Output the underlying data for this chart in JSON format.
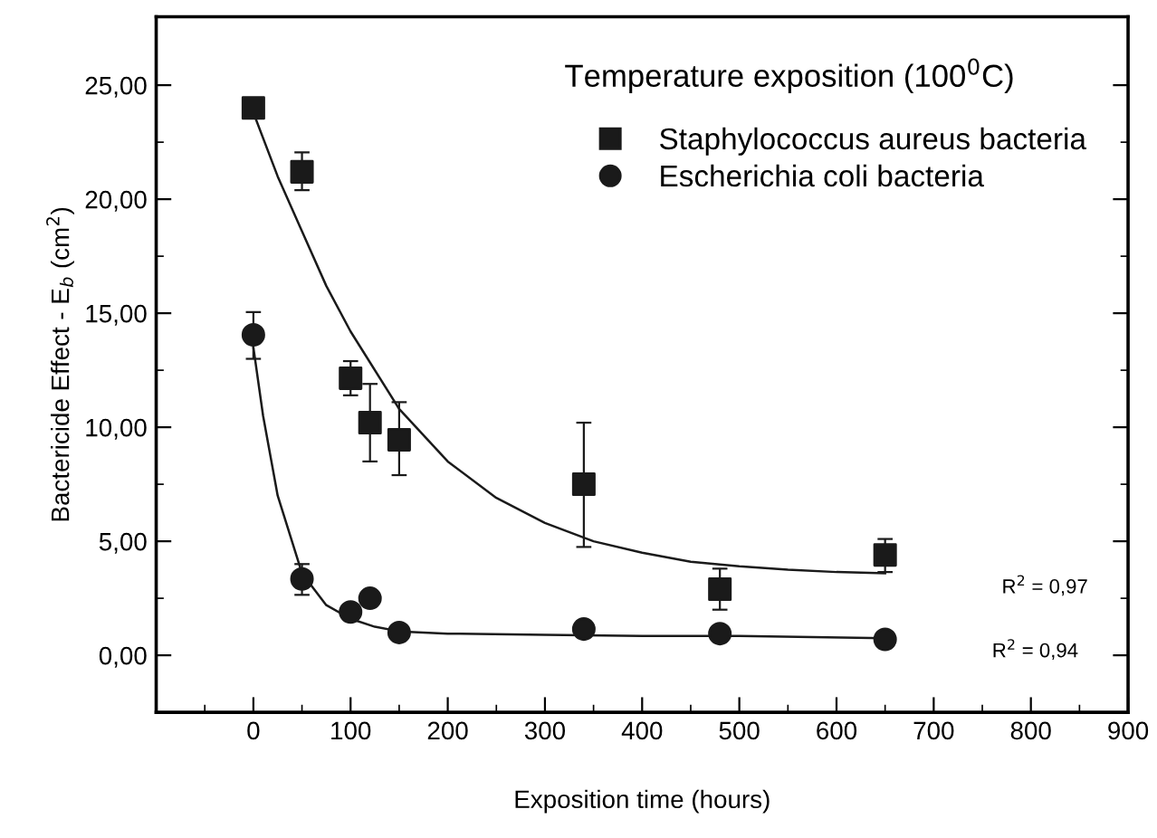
{
  "chart_data": {
    "type": "scatter",
    "xlabel": "Exposition time (hours)",
    "ylabel": "Bactericide Effect - E$_{b}$ (cm$^{2}$)",
    "xlim": [
      -100,
      900
    ],
    "xticks": [
      0,
      100,
      200,
      300,
      400,
      500,
      600,
      700,
      800,
      900
    ],
    "ylim": [
      -2.5,
      28
    ],
    "yticks": [
      {
        "value": 0,
        "label": "0,00"
      },
      {
        "value": 5,
        "label": "5,00"
      },
      {
        "value": 10,
        "label": "10,00"
      },
      {
        "value": 15,
        "label": "15,00"
      },
      {
        "value": 20,
        "label": "20,00"
      },
      {
        "value": 25,
        "label": "25,00"
      }
    ],
    "grid": false,
    "legend": "top right",
    "annotations": [
      "Temperature exposition (100$^{0}$C)",
      "R$^{2}$ = 0,97",
      "R$^{2}$ = 0,94"
    ],
    "series": [
      {
        "name": "Staphylococcus aureus bacteria",
        "color": "#1a1a1a",
        "marker": "square",
        "x": [
          0,
          50,
          100,
          120,
          150,
          340,
          480,
          650
        ],
        "values": [
          24.0,
          21.2,
          12.15,
          10.2,
          9.45,
          7.5,
          2.9,
          4.4
        ],
        "errors": [
          [
            23.6,
            24.3
          ],
          [
            20.4,
            22.05
          ],
          [
            11.4,
            12.9
          ],
          [
            8.5,
            11.9
          ],
          [
            7.9,
            11.1
          ],
          [
            4.75,
            10.2
          ],
          [
            2.0,
            3.8
          ],
          [
            3.65,
            5.1
          ]
        ]
      },
      {
        "name": "Escherichia coli bacteria",
        "color": "#1a1a1a",
        "marker": "circle",
        "x": [
          0,
          50,
          100,
          120,
          150,
          340,
          480,
          650
        ],
        "values": [
          14.05,
          3.35,
          1.9,
          2.5,
          1.0,
          1.15,
          0.95,
          0.7
        ],
        "errors": [
          [
            13.0,
            15.05
          ],
          [
            2.65,
            4.0
          ],
          null,
          [
            2.2,
            2.8
          ],
          null,
          [
            0.8,
            1.5
          ],
          null,
          null
        ]
      },
      {
        "type": "line",
        "color": "#1a1a1a",
        "marker": "none",
        "line_style": "solid",
        "x": [
          0,
          25,
          50,
          75,
          100,
          150,
          200,
          250,
          300,
          350,
          400,
          450,
          500,
          550,
          600,
          650
        ],
        "values": [
          23.8,
          21.0,
          18.6,
          16.2,
          14.2,
          10.8,
          8.5,
          6.9,
          5.8,
          5.0,
          4.5,
          4.1,
          3.9,
          3.75,
          3.65,
          3.6
        ]
      },
      {
        "type": "line",
        "color": "#1a1a1a",
        "marker": "none",
        "line_style": "solid",
        "x": [
          0,
          10,
          25,
          50,
          75,
          100,
          125,
          150,
          200,
          300,
          400,
          500,
          650
        ],
        "values": [
          13.5,
          10.5,
          7.0,
          3.6,
          2.2,
          1.6,
          1.25,
          1.05,
          0.95,
          0.9,
          0.85,
          0.85,
          0.75
        ]
      }
    ]
  }
}
